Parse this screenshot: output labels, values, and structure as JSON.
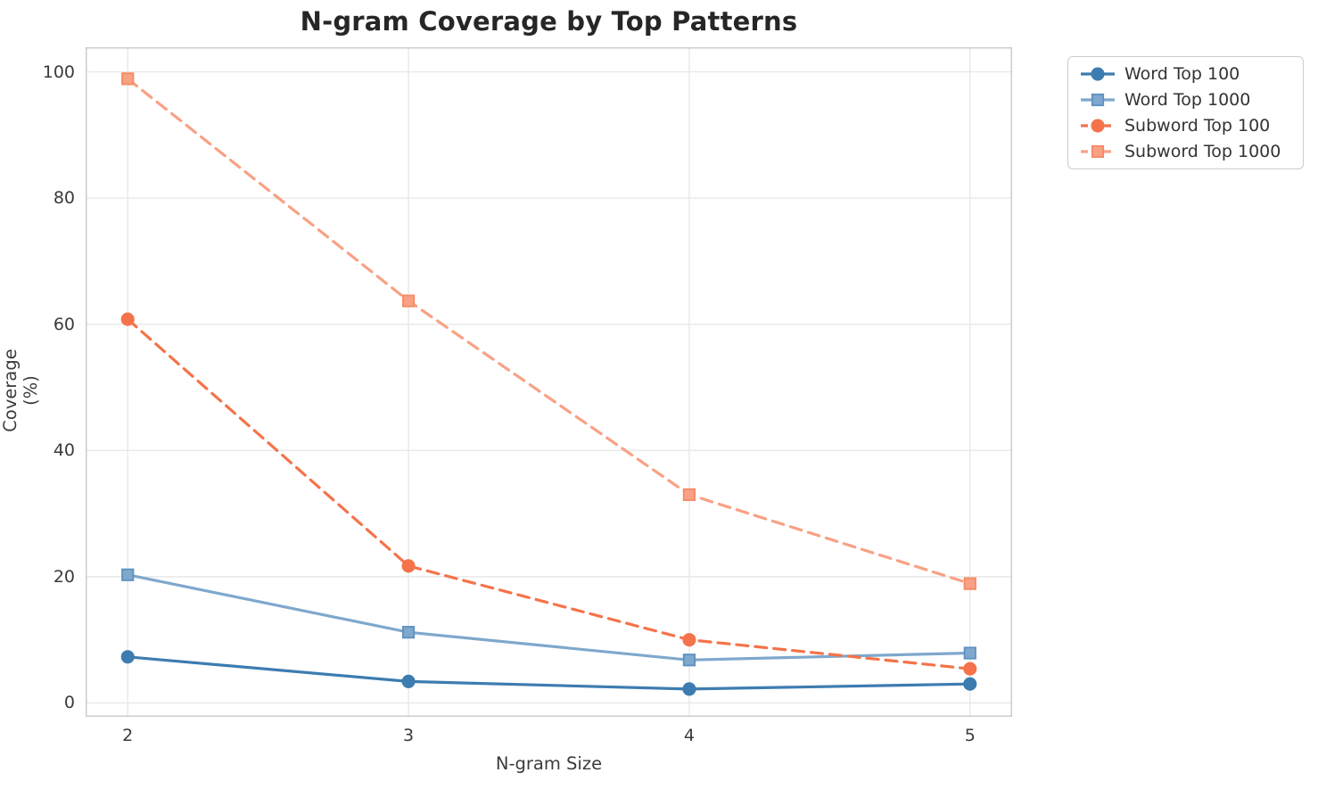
{
  "title": "N-gram Coverage by Top Patterns",
  "chart_data": {
    "type": "line",
    "title": "N-gram Coverage by Top Patterns",
    "xlabel": "N-gram Size",
    "ylabel": "Coverage (%)",
    "x": [
      2,
      3,
      4,
      5
    ],
    "xticks": [
      "2",
      "3",
      "4",
      "5"
    ],
    "yticks": [
      0,
      20,
      40,
      60,
      80,
      100
    ],
    "xlim": [
      1.85,
      5.15
    ],
    "ylim": [
      -2.2,
      103.9
    ],
    "grid": true,
    "grid_color": "#e8e8e8",
    "spine_color": "#cccccc",
    "legend_position": "upper-right-outside",
    "series": [
      {
        "name": "Word Top 100",
        "values": [
          7.3,
          3.4,
          2.2,
          3.0
        ],
        "color": "#3d7cb0",
        "edge": "#3d7cb0",
        "marker": "circle",
        "line_style": "solid"
      },
      {
        "name": "Word Top 1000",
        "values": [
          20.3,
          11.2,
          6.8,
          7.9
        ],
        "color": "#7ea8cd",
        "edge": "#5e91c0",
        "marker": "square",
        "line_style": "solid"
      },
      {
        "name": "Subword Top 100",
        "values": [
          60.8,
          21.7,
          10.0,
          5.4
        ],
        "color": "#f5734a",
        "edge": "#f5734a",
        "marker": "circle",
        "line_style": "dashed"
      },
      {
        "name": "Subword Top 1000",
        "values": [
          98.9,
          63.7,
          33.0,
          18.9
        ],
        "color": "#f9a184",
        "edge": "#f58a63",
        "marker": "square",
        "line_style": "dashed"
      }
    ]
  }
}
